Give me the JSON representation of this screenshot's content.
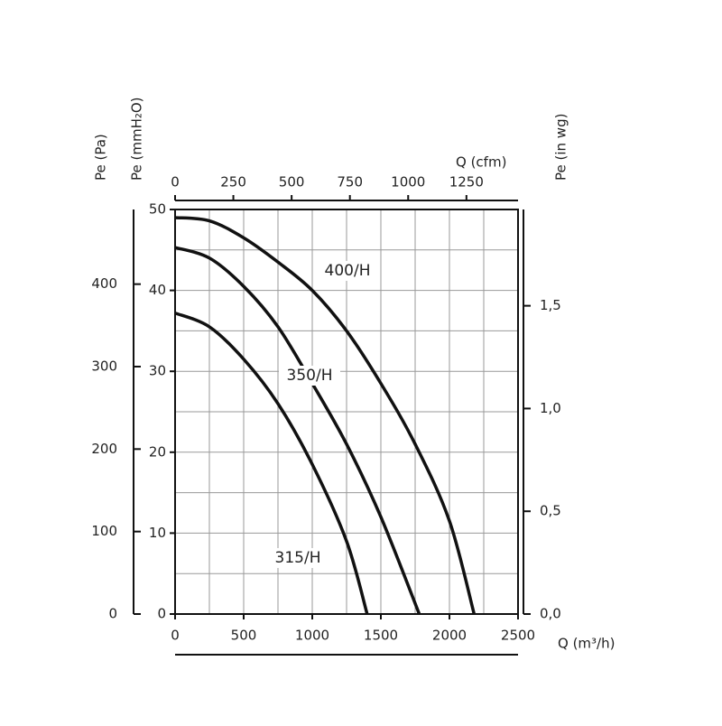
{
  "chart_data": {
    "type": "line",
    "xlabel": "Q (m³/h)",
    "ylabel": "Pe (mmH₂O)",
    "y2label": "Pe (in wg)",
    "y3label": "Pe (Pa)",
    "x2label": "Q (cfm)",
    "xlim": [
      0,
      2500
    ],
    "xticks": [
      0,
      500,
      1000,
      1500,
      2000,
      2500
    ],
    "ylim": [
      0,
      50
    ],
    "yticks": [
      0,
      10,
      20,
      30,
      40,
      50
    ],
    "y2lim": [
      0,
      1.9685
    ],
    "y2ticks": [
      {
        "value": 0,
        "label": "0,0"
      },
      {
        "value": 0.5,
        "label": "0,5"
      },
      {
        "value": 1.0,
        "label": "1,0"
      },
      {
        "value": 1.5,
        "label": "1,5"
      }
    ],
    "y3lim": [
      0,
      490.5
    ],
    "y3ticks": [
      0,
      100,
      200,
      300,
      400
    ],
    "x2lim": [
      0,
      1471.4
    ],
    "x2ticks": [
      0,
      250,
      500,
      750,
      1000,
      1250
    ],
    "grid": true,
    "grid_step_x": 250,
    "grid_step_y": 5,
    "series": [
      {
        "name": "400/H",
        "color": "#111111",
        "x": [
          0,
          250,
          500,
          750,
          1000,
          1250,
          1500,
          1750,
          2000,
          2180
        ],
        "values": [
          49,
          48.6,
          46.5,
          43.5,
          40,
          35,
          28.5,
          21,
          11.5,
          0
        ]
      },
      {
        "name": "350/H",
        "color": "#111111",
        "x": [
          0,
          250,
          500,
          750,
          1000,
          1250,
          1500,
          1780
        ],
        "values": [
          45.3,
          44,
          40.5,
          35.5,
          28.5,
          21,
          12,
          0
        ]
      },
      {
        "name": "315/H",
        "color": "#111111",
        "x": [
          0,
          250,
          500,
          750,
          1000,
          1250,
          1400
        ],
        "values": [
          37.2,
          35.5,
          31.5,
          26,
          18.5,
          9,
          0
        ]
      }
    ]
  }
}
